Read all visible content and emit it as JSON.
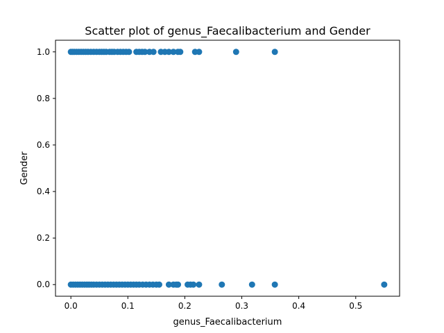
{
  "chart_data": {
    "type": "scatter",
    "title": "Scatter plot of genus_Faecalibacterium and Gender",
    "xlabel": "genus_Faecalibacterium",
    "ylabel": "Gender",
    "xlim": [
      -0.027,
      0.577
    ],
    "ylim": [
      -0.05,
      1.05
    ],
    "x_ticks": [
      "0.0",
      "0.1",
      "0.2",
      "0.3",
      "0.4",
      "0.5"
    ],
    "y_ticks": [
      "0.0",
      "0.2",
      "0.4",
      "0.6",
      "0.8",
      "1.0"
    ],
    "grid": false,
    "marker_color": "#1f77b4",
    "series": [
      {
        "points": [
          [
            0.0,
            1
          ],
          [
            0.003,
            1
          ],
          [
            0.006,
            1
          ],
          [
            0.01,
            1
          ],
          [
            0.014,
            1
          ],
          [
            0.018,
            1
          ],
          [
            0.022,
            1
          ],
          [
            0.026,
            1
          ],
          [
            0.03,
            1
          ],
          [
            0.035,
            1
          ],
          [
            0.04,
            1
          ],
          [
            0.045,
            1
          ],
          [
            0.05,
            1
          ],
          [
            0.054,
            1
          ],
          [
            0.058,
            1
          ],
          [
            0.062,
            1
          ],
          [
            0.068,
            1
          ],
          [
            0.072,
            1
          ],
          [
            0.076,
            1
          ],
          [
            0.082,
            1
          ],
          [
            0.087,
            1
          ],
          [
            0.092,
            1
          ],
          [
            0.097,
            1
          ],
          [
            0.102,
            1
          ],
          [
            0.115,
            1
          ],
          [
            0.12,
            1
          ],
          [
            0.125,
            1
          ],
          [
            0.13,
            1
          ],
          [
            0.138,
            1
          ],
          [
            0.145,
            1
          ],
          [
            0.158,
            1
          ],
          [
            0.165,
            1
          ],
          [
            0.172,
            1
          ],
          [
            0.18,
            1
          ],
          [
            0.188,
            1
          ],
          [
            0.192,
            1
          ],
          [
            0.218,
            1
          ],
          [
            0.225,
            1
          ],
          [
            0.29,
            1
          ],
          [
            0.358,
            1
          ],
          [
            0.0,
            0
          ],
          [
            0.004,
            0
          ],
          [
            0.008,
            0
          ],
          [
            0.012,
            0
          ],
          [
            0.016,
            0
          ],
          [
            0.02,
            0
          ],
          [
            0.024,
            0
          ],
          [
            0.028,
            0
          ],
          [
            0.032,
            0
          ],
          [
            0.036,
            0
          ],
          [
            0.04,
            0
          ],
          [
            0.045,
            0
          ],
          [
            0.05,
            0
          ],
          [
            0.055,
            0
          ],
          [
            0.06,
            0
          ],
          [
            0.065,
            0
          ],
          [
            0.07,
            0
          ],
          [
            0.075,
            0
          ],
          [
            0.08,
            0
          ],
          [
            0.085,
            0
          ],
          [
            0.09,
            0
          ],
          [
            0.095,
            0
          ],
          [
            0.1,
            0
          ],
          [
            0.105,
            0
          ],
          [
            0.11,
            0
          ],
          [
            0.115,
            0
          ],
          [
            0.12,
            0
          ],
          [
            0.126,
            0
          ],
          [
            0.132,
            0
          ],
          [
            0.138,
            0
          ],
          [
            0.144,
            0
          ],
          [
            0.15,
            0
          ],
          [
            0.155,
            0
          ],
          [
            0.172,
            0
          ],
          [
            0.18,
            0
          ],
          [
            0.185,
            0
          ],
          [
            0.188,
            0
          ],
          [
            0.205,
            0
          ],
          [
            0.21,
            0
          ],
          [
            0.215,
            0
          ],
          [
            0.225,
            0
          ],
          [
            0.265,
            0
          ],
          [
            0.318,
            0
          ],
          [
            0.358,
            0
          ],
          [
            0.55,
            0
          ]
        ]
      }
    ]
  }
}
